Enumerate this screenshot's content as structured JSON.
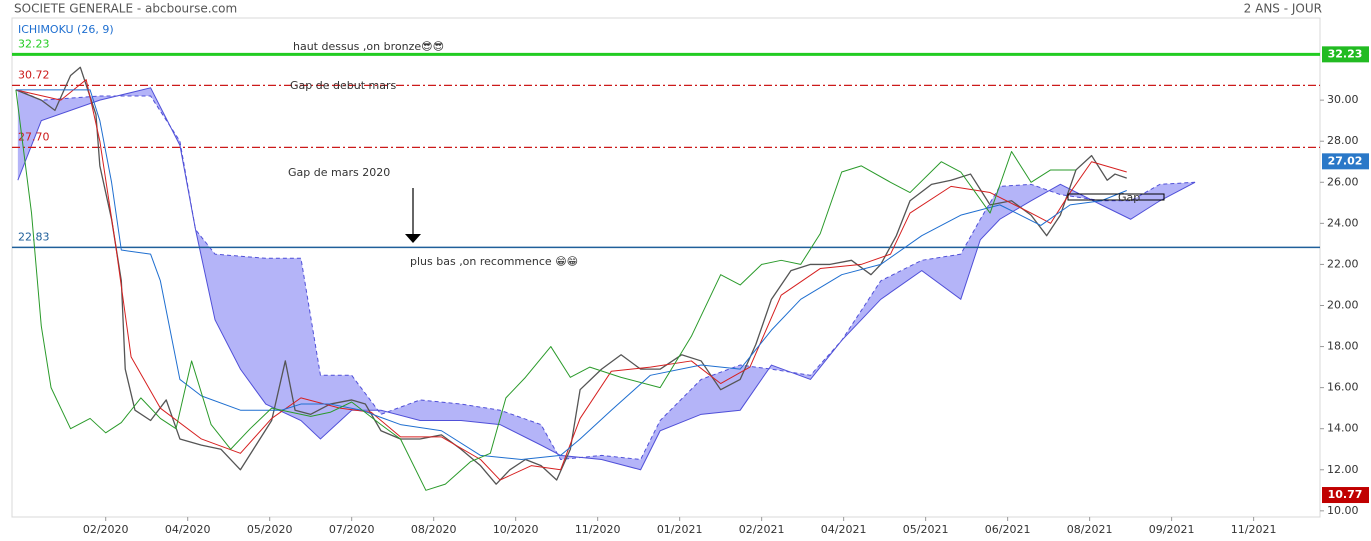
{
  "header": {
    "title": "SOCIETE GENERALE - abcbourse.com",
    "period": "2 ANS - JOUR"
  },
  "chart_data": {
    "type": "line",
    "indicator_label": "ICHIMOKU (26, 9)",
    "xlim": [
      -8,
      662
    ],
    "ylim": [
      9.7,
      34.0
    ],
    "xticks": [
      {
        "value": 40,
        "label": "02/2020"
      },
      {
        "value": 82,
        "label": "04/2020"
      },
      {
        "value": 124,
        "label": "05/2020"
      },
      {
        "value": 166,
        "label": "07/2020"
      },
      {
        "value": 208,
        "label": "08/2020"
      },
      {
        "value": 250,
        "label": "10/2020"
      },
      {
        "value": 292,
        "label": "11/2020"
      },
      {
        "value": 334,
        "label": "01/2021"
      },
      {
        "value": 376,
        "label": "02/2021"
      },
      {
        "value": 418,
        "label": "04/2021"
      },
      {
        "value": 460,
        "label": "05/2021"
      },
      {
        "value": 502,
        "label": "06/2021"
      },
      {
        "value": 544,
        "label": "08/2021"
      },
      {
        "value": 586,
        "label": "09/2021"
      },
      {
        "value": 628,
        "label": "11/2021"
      }
    ],
    "yticks": [
      {
        "value": 10,
        "label": "10.00"
      },
      {
        "value": 12,
        "label": "12.00"
      },
      {
        "value": 14,
        "label": "14.00"
      },
      {
        "value": 16,
        "label": "16.00"
      },
      {
        "value": 18,
        "label": "18.00"
      },
      {
        "value": 20,
        "label": "20.00"
      },
      {
        "value": 22,
        "label": "22.00"
      },
      {
        "value": 24,
        "label": "24.00"
      },
      {
        "value": 26,
        "label": "26.00"
      },
      {
        "value": 28,
        "label": "28.00"
      },
      {
        "value": 30,
        "label": "30.00"
      }
    ],
    "grid": false,
    "cloud": {
      "fill": "#b4b4f8",
      "line_color": "#5050d8",
      "x": [
        -5,
        7,
        37,
        63,
        78,
        86,
        96,
        109,
        122,
        140,
        150,
        166,
        181,
        201,
        222,
        242,
        263,
        273,
        294,
        314,
        324,
        345,
        365,
        381,
        401,
        417,
        437,
        458,
        478,
        488,
        498,
        514,
        529,
        550,
        565,
        580,
        598
      ],
      "span_a": [
        26.1,
        29.0,
        30.0,
        30.6,
        27.8,
        23.7,
        19.3,
        16.9,
        15.2,
        14.4,
        13.5,
        14.9,
        14.9,
        14.4,
        14.4,
        14.2,
        13.2,
        12.7,
        12.5,
        12.0,
        13.9,
        14.7,
        14.9,
        17.1,
        16.4,
        18.3,
        20.3,
        21.7,
        20.3,
        23.2,
        24.2,
        25.1,
        25.9,
        24.9,
        24.2,
        25.1,
        26.0
      ],
      "span_b": [
        30.5,
        30.0,
        30.2,
        30.2,
        28.0,
        23.7,
        22.5,
        22.4,
        22.3,
        22.3,
        16.6,
        16.6,
        14.7,
        15.4,
        15.2,
        14.9,
        14.2,
        12.5,
        12.7,
        12.5,
        14.4,
        16.4,
        17.1,
        16.9,
        16.6,
        18.3,
        21.2,
        22.2,
        22.5,
        24.2,
        25.8,
        25.9,
        25.4,
        25.1,
        25.1,
        25.9,
        26.0
      ]
    },
    "series": [
      {
        "color": "#555555",
        "width": 1.3,
        "x": [
          -6,
          7,
          14,
          22,
          27,
          35,
          37,
          43,
          48,
          50,
          55,
          63,
          71,
          78,
          89,
          99,
          109,
          117,
          125,
          132,
          137,
          145,
          155,
          166,
          173,
          181,
          191,
          201,
          212,
          222,
          232,
          240,
          247,
          255,
          263,
          271,
          278,
          283,
          294,
          304,
          314,
          324,
          335,
          345,
          355,
          365,
          373,
          381,
          391,
          401,
          411,
          422,
          432,
          437,
          445,
          452,
          463,
          473,
          483,
          493,
          504,
          514,
          522,
          529,
          537,
          545,
          553,
          557,
          563
        ],
        "values": [
          30.5,
          30.0,
          29.5,
          31.2,
          31.6,
          29.3,
          26.8,
          24.2,
          21.2,
          16.9,
          14.9,
          14.4,
          15.4,
          13.5,
          13.2,
          13.0,
          12.0,
          13.2,
          14.4,
          17.3,
          14.9,
          14.7,
          15.2,
          15.4,
          15.2,
          13.9,
          13.5,
          13.5,
          13.7,
          13.0,
          12.2,
          11.3,
          12.0,
          12.5,
          12.2,
          11.5,
          13.0,
          15.9,
          16.9,
          17.6,
          16.9,
          16.9,
          17.6,
          17.3,
          15.9,
          16.4,
          18.1,
          20.3,
          21.7,
          22.0,
          22.0,
          22.2,
          21.5,
          22.0,
          23.4,
          25.1,
          25.9,
          26.1,
          26.4,
          24.9,
          25.1,
          24.4,
          23.4,
          24.4,
          26.6,
          27.3,
          26.1,
          26.4,
          26.2
        ]
      },
      {
        "color": "#d62020",
        "width": 1,
        "x": [
          -6,
          17,
          30,
          37,
          45,
          53,
          68,
          89,
          109,
          125,
          140,
          160,
          176,
          191,
          212,
          232,
          242,
          258,
          273,
          283,
          299,
          319,
          340,
          355,
          370,
          386,
          406,
          427,
          442,
          452,
          473,
          493,
          514,
          524,
          534,
          545,
          563
        ],
        "values": [
          30.5,
          30.0,
          31.0,
          28.0,
          23.0,
          17.5,
          15.0,
          13.5,
          12.8,
          14.5,
          15.5,
          15.0,
          14.8,
          13.6,
          13.6,
          12.5,
          11.5,
          12.2,
          12.0,
          14.5,
          16.8,
          17.0,
          17.3,
          16.2,
          17.0,
          20.5,
          21.8,
          22.0,
          22.5,
          24.5,
          25.8,
          25.5,
          24.5,
          24.0,
          25.5,
          27.0,
          26.5
        ]
      },
      {
        "color": "#1f6fd0",
        "width": 1,
        "x": [
          -6,
          32,
          37,
          43,
          48,
          63,
          68,
          78,
          89,
          109,
          130,
          140,
          155,
          171,
          191,
          212,
          232,
          253,
          273,
          283,
          299,
          319,
          345,
          365,
          381,
          396,
          417,
          437,
          458,
          478,
          498,
          519,
          534,
          550,
          563
        ],
        "values": [
          30.5,
          30.5,
          29.0,
          26.0,
          22.7,
          22.5,
          21.2,
          16.4,
          15.6,
          14.9,
          14.9,
          15.2,
          15.2,
          14.9,
          14.2,
          13.9,
          12.7,
          12.5,
          12.7,
          13.5,
          14.9,
          16.6,
          17.1,
          16.9,
          18.8,
          20.3,
          21.5,
          22.0,
          23.4,
          24.4,
          24.9,
          23.9,
          24.9,
          25.1,
          25.6
        ]
      },
      {
        "color": "#2a9a2a",
        "width": 1,
        "x": [
          -6,
          2,
          7,
          12,
          17,
          22,
          32,
          40,
          48,
          58,
          68,
          76,
          84,
          94,
          104,
          114,
          125,
          135,
          145,
          155,
          166,
          181,
          191,
          204,
          214,
          227,
          237,
          245,
          255,
          268,
          278,
          288,
          304,
          324,
          340,
          355,
          365,
          376,
          386,
          396,
          406,
          417,
          427,
          442,
          452,
          468,
          478,
          493,
          504,
          514,
          524,
          537
        ],
        "values": [
          30.5,
          24.5,
          19.0,
          16.0,
          15.0,
          14.0,
          14.5,
          13.8,
          14.3,
          15.5,
          14.5,
          14.0,
          17.3,
          14.2,
          13.0,
          14.0,
          15.0,
          14.8,
          14.6,
          14.8,
          15.3,
          14.2,
          13.5,
          11.0,
          11.3,
          12.4,
          12.8,
          15.5,
          16.5,
          18.0,
          16.5,
          17.0,
          16.5,
          16.0,
          18.5,
          21.5,
          21.0,
          22.0,
          22.2,
          22.0,
          23.5,
          26.5,
          26.8,
          26.0,
          25.5,
          27.0,
          26.5,
          24.5,
          27.5,
          26.0,
          26.6,
          26.6
        ]
      }
    ],
    "levels": [
      {
        "value": 32.23,
        "label": "32.23",
        "color": "#22cc22",
        "style": "solid"
      },
      {
        "value": 30.72,
        "label": "30.72",
        "color": "#cc1a1a",
        "style": "dashdot"
      },
      {
        "value": 27.7,
        "label": "27.70",
        "color": "#cc1a1a",
        "style": "dashdot"
      },
      {
        "value": 22.83,
        "label": "22.83",
        "color": "#1f5f9a",
        "style": "solid"
      }
    ],
    "price_badges": [
      {
        "value": 32.23,
        "label": "32.23",
        "color": "#22bb22"
      },
      {
        "value": 27.02,
        "label": "27.02",
        "color": "#2a78c8"
      },
      {
        "value": 10.77,
        "label": "10.77",
        "color": "#c00000"
      }
    ],
    "annotations": [
      "haut dessus ,on bronze😎😎",
      "Gap de debut mars",
      "Gap de mars 2020",
      "plus bas ,on recommence 😁😁",
      "Gap"
    ]
  }
}
